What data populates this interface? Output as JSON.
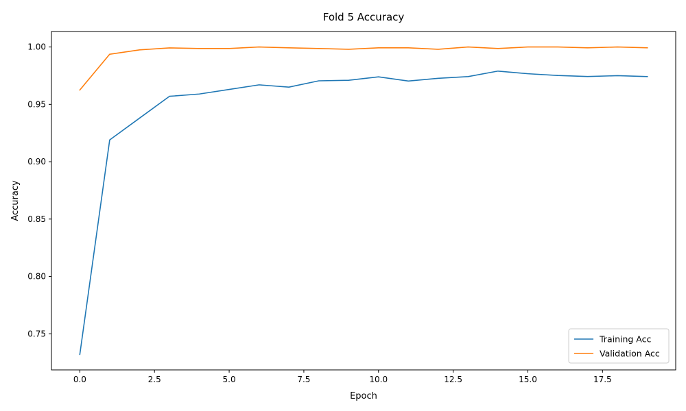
{
  "chart_data": {
    "type": "line",
    "title": "Fold 5 Accuracy",
    "xlabel": "Epoch",
    "ylabel": "Accuracy",
    "xlim": [
      -0.95,
      19.95
    ],
    "ylim": [
      0.7185,
      1.0135
    ],
    "xticks": [
      0.0,
      2.5,
      5.0,
      7.5,
      10.0,
      12.5,
      15.0,
      17.5
    ],
    "xtick_labels": [
      "0.0",
      "2.5",
      "5.0",
      "7.5",
      "10.0",
      "12.5",
      "15.0",
      "17.5"
    ],
    "yticks": [
      0.75,
      0.8,
      0.85,
      0.9,
      0.95,
      1.0
    ],
    "ytick_labels": [
      "0.75",
      "0.80",
      "0.85",
      "0.90",
      "0.95",
      "1.00"
    ],
    "grid": false,
    "legend_position": "bottom-right",
    "x": [
      0,
      1,
      2,
      3,
      4,
      5,
      6,
      7,
      8,
      9,
      10,
      11,
      12,
      13,
      14,
      15,
      16,
      17,
      18,
      19
    ],
    "series": [
      {
        "name": "Training Acc",
        "color": "#1f77b4",
        "values": [
          0.732,
          0.919,
          0.938,
          0.957,
          0.959,
          0.963,
          0.967,
          0.965,
          0.9705,
          0.971,
          0.974,
          0.9703,
          0.9727,
          0.9742,
          0.979,
          0.9767,
          0.9752,
          0.9743,
          0.975,
          0.9742
        ]
      },
      {
        "name": "Validation Acc",
        "color": "#ff7f0e",
        "values": [
          0.9625,
          0.9937,
          0.9975,
          0.9992,
          0.9987,
          0.9987,
          1.0,
          0.9993,
          0.9987,
          0.998,
          0.9993,
          0.9993,
          0.998,
          1.0,
          0.9987,
          1.0,
          1.0,
          0.9993,
          1.0,
          0.9993
        ]
      }
    ]
  }
}
